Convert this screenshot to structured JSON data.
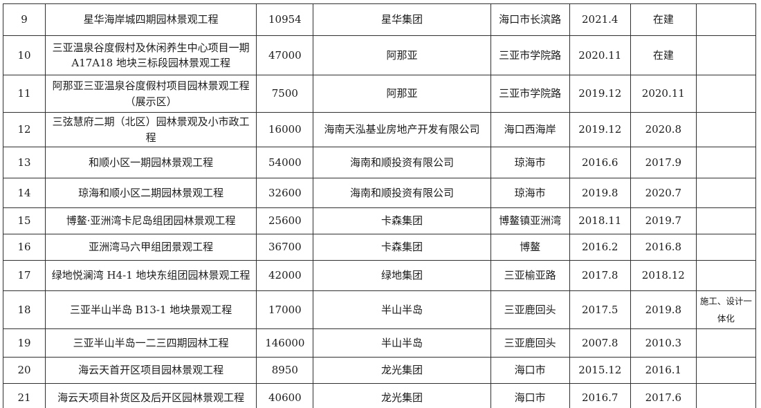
{
  "colors": {
    "background": "#ffffff",
    "border": "#2e2e2e",
    "text": "#1b1b1b"
  },
  "table": {
    "column_keys": [
      "seq",
      "name",
      "area",
      "client",
      "location",
      "start",
      "end",
      "note"
    ],
    "rows": [
      {
        "seq": "9",
        "name": "星华海岸城四期园林景观工程",
        "area": "10954",
        "client": "星华集团",
        "location": "海口市长滨路",
        "start": "2021.4",
        "end": "在建",
        "note": ""
      },
      {
        "seq": "10",
        "name": "三亚温泉谷度假村及休闲养生中心项目一期 A17A18 地块三标段园林景观工程",
        "area": "47000",
        "client": "阿那亚",
        "location": "三亚市学院路",
        "start": "2020.11",
        "end": "在建",
        "note": ""
      },
      {
        "seq": "11",
        "name": "阿那亚三亚温泉谷度假村项目园林景观工程（展示区）",
        "area": "7500",
        "client": "阿那亚",
        "location": "三亚市学院路",
        "start": "2019.12",
        "end": "2020.11",
        "note": ""
      },
      {
        "seq": "12",
        "name": "三弦慧府二期（北区）园林景观及小市政工程",
        "area": "16000",
        "client": "海南天泓基业房地产开发有限公司",
        "location": "海口西海岸",
        "start": "2019.12",
        "end": "2020.8",
        "note": ""
      },
      {
        "seq": "13",
        "name": "和顺小区一期园林景观工程",
        "area": "54000",
        "client": "海南和顺投资有限公司",
        "location": "琼海市",
        "start": "2016.6",
        "end": "2017.9",
        "note": ""
      },
      {
        "seq": "14",
        "name": "琼海和顺小区二期园林景观工程",
        "area": "32600",
        "client": "海南和顺投资有限公司",
        "location": "琼海市",
        "start": "2019.8",
        "end": "2020.7",
        "note": ""
      },
      {
        "seq": "15",
        "name": "博鳌·亚洲湾卡尼岛组团园林景观工程",
        "area": "25600",
        "client": "卡森集团",
        "location": "博鳌镇亚洲湾",
        "start": "2018.11",
        "end": "2019.7",
        "note": ""
      },
      {
        "seq": "16",
        "name": "亚洲湾马六甲组团景观工程",
        "area": "36700",
        "client": "卡森集团",
        "location": "博鳌",
        "start": "2016.2",
        "end": "2016.8",
        "note": ""
      },
      {
        "seq": "17",
        "name": "绿地悦澜湾 H4-1 地块东组团园林景观工程",
        "area": "42000",
        "client": "绿地集团",
        "location": "三亚榆亚路",
        "start": "2017.8",
        "end": "2018.12",
        "note": ""
      },
      {
        "seq": "18",
        "name": "三亚半山半岛 B13-1 地块景观工程",
        "area": "17000",
        "client": "半山半岛",
        "location": "三亚鹿回头",
        "start": "2017.5",
        "end": "2019.8",
        "note": "施工、设计一体化"
      },
      {
        "seq": "19",
        "name": "三亚半山半岛一二三四期园林工程",
        "area": "146000",
        "client": "半山半岛",
        "location": "三亚鹿回头",
        "start": "2007.8",
        "end": "2010.3",
        "note": ""
      },
      {
        "seq": "20",
        "name": "海云天首开区项目园林景观工程",
        "area": "8950",
        "client": "龙光集团",
        "location": "海口市",
        "start": "2015.12",
        "end": "2016.1",
        "note": ""
      },
      {
        "seq": "21",
        "name": "海云天项目补货区及后开区园林景观工程",
        "area": "40600",
        "client": "龙光集团",
        "location": "海口市",
        "start": "2016.7",
        "end": "2017.6",
        "note": ""
      }
    ]
  }
}
